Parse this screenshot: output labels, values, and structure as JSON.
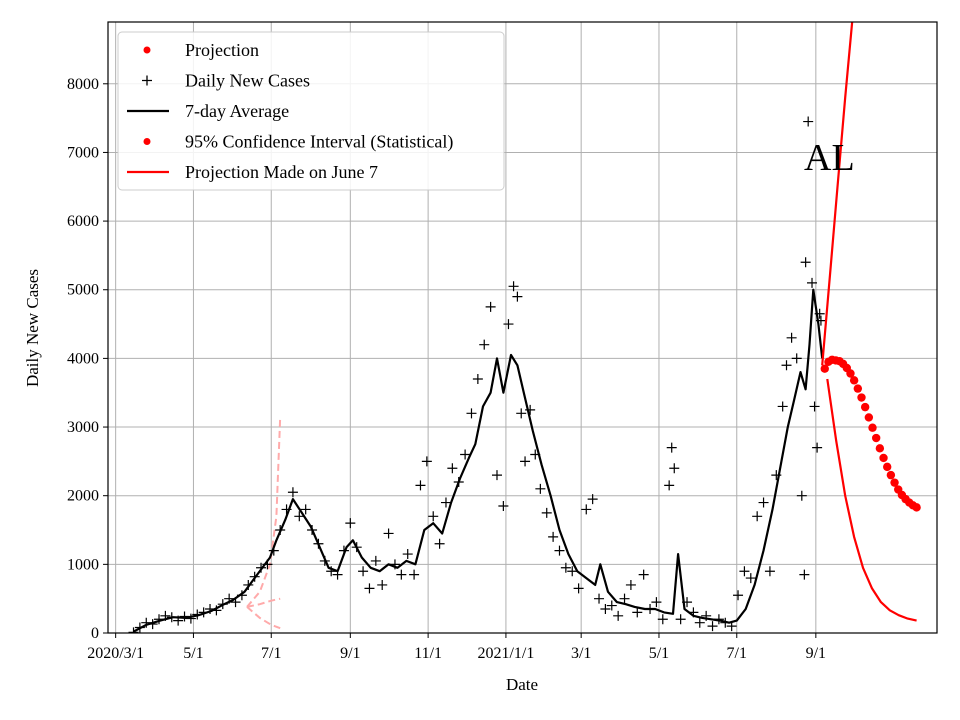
{
  "chart_data": {
    "type": "line",
    "title": "",
    "annotation": "AL",
    "xlabel": "Date",
    "ylabel": "Daily New Cases",
    "ylim": [
      0,
      8900
    ],
    "xlim": [
      "2020-02-24",
      "2021-12-05"
    ],
    "grid": true,
    "legend_position": "top-left",
    "x_ticks": [
      {
        "date": "2020-03-01",
        "label": "2020/3/1"
      },
      {
        "date": "2020-05-01",
        "label": "5/1"
      },
      {
        "date": "2020-07-01",
        "label": "7/1"
      },
      {
        "date": "2020-09-01",
        "label": "9/1"
      },
      {
        "date": "2020-11-01",
        "label": "11/1"
      },
      {
        "date": "2021-01-01",
        "label": "2021/1/1"
      },
      {
        "date": "2021-03-01",
        "label": "3/1"
      },
      {
        "date": "2021-05-01",
        "label": "5/1"
      },
      {
        "date": "2021-07-01",
        "label": "7/1"
      },
      {
        "date": "2021-09-01",
        "label": "9/1"
      }
    ],
    "y_ticks": [
      0,
      1000,
      2000,
      3000,
      4000,
      5000,
      6000,
      7000,
      8000
    ],
    "legend": [
      {
        "label": "Projection",
        "marker": "dot",
        "color": "#ff0000"
      },
      {
        "label": "Daily New Cases",
        "marker": "plus",
        "color": "#000000"
      },
      {
        "label": "7-day Average",
        "marker": "line",
        "color": "#000000"
      },
      {
        "label": "95% Confidence Interval (Statistical)",
        "marker": "dot",
        "color": "#ff0000"
      },
      {
        "label": "Projection Made on June 7",
        "marker": "line",
        "color": "#ff0000"
      }
    ],
    "series": [
      {
        "name": "7-day Average",
        "color": "#000000",
        "points": [
          [
            "2020-03-15",
            20
          ],
          [
            "2020-03-25",
            120
          ],
          [
            "2020-04-05",
            180
          ],
          [
            "2020-04-15",
            230
          ],
          [
            "2020-04-25",
            220
          ],
          [
            "2020-05-05",
            260
          ],
          [
            "2020-05-15",
            320
          ],
          [
            "2020-05-25",
            420
          ],
          [
            "2020-06-01",
            480
          ],
          [
            "2020-06-10",
            600
          ],
          [
            "2020-06-20",
            850
          ],
          [
            "2020-06-30",
            1100
          ],
          [
            "2020-07-05",
            1350
          ],
          [
            "2020-07-12",
            1650
          ],
          [
            "2020-07-18",
            1950
          ],
          [
            "2020-07-25",
            1750
          ],
          [
            "2020-08-01",
            1550
          ],
          [
            "2020-08-08",
            1250
          ],
          [
            "2020-08-15",
            950
          ],
          [
            "2020-08-22",
            900
          ],
          [
            "2020-08-29",
            1250
          ],
          [
            "2020-09-03",
            1350
          ],
          [
            "2020-09-10",
            1100
          ],
          [
            "2020-09-17",
            950
          ],
          [
            "2020-09-24",
            900
          ],
          [
            "2020-10-01",
            1000
          ],
          [
            "2020-10-08",
            950
          ],
          [
            "2020-10-15",
            1050
          ],
          [
            "2020-10-22",
            1000
          ],
          [
            "2020-10-29",
            1500
          ],
          [
            "2020-11-05",
            1600
          ],
          [
            "2020-11-12",
            1450
          ],
          [
            "2020-11-19",
            1900
          ],
          [
            "2020-11-26",
            2250
          ],
          [
            "2020-12-03",
            2550
          ],
          [
            "2020-12-08",
            2750
          ],
          [
            "2020-12-14",
            3300
          ],
          [
            "2020-12-20",
            3500
          ],
          [
            "2020-12-25",
            4000
          ],
          [
            "2020-12-30",
            3500
          ],
          [
            "2021-01-05",
            4050
          ],
          [
            "2021-01-10",
            3900
          ],
          [
            "2021-01-15",
            3500
          ],
          [
            "2021-01-22",
            2950
          ],
          [
            "2021-01-29",
            2450
          ],
          [
            "2021-02-05",
            2000
          ],
          [
            "2021-02-12",
            1500
          ],
          [
            "2021-02-19",
            1150
          ],
          [
            "2021-02-26",
            900
          ],
          [
            "2021-03-05",
            800
          ],
          [
            "2021-03-12",
            700
          ],
          [
            "2021-03-16",
            1000
          ],
          [
            "2021-03-22",
            600
          ],
          [
            "2021-03-29",
            450
          ],
          [
            "2021-04-05",
            420
          ],
          [
            "2021-04-12",
            380
          ],
          [
            "2021-04-20",
            350
          ],
          [
            "2021-04-28",
            350
          ],
          [
            "2021-05-05",
            300
          ],
          [
            "2021-05-12",
            280
          ],
          [
            "2021-05-16",
            1150
          ],
          [
            "2021-05-21",
            350
          ],
          [
            "2021-05-28",
            250
          ],
          [
            "2021-06-04",
            220
          ],
          [
            "2021-06-11",
            200
          ],
          [
            "2021-06-18",
            180
          ],
          [
            "2021-06-25",
            150
          ],
          [
            "2021-07-01",
            180
          ],
          [
            "2021-07-08",
            350
          ],
          [
            "2021-07-15",
            700
          ],
          [
            "2021-07-22",
            1200
          ],
          [
            "2021-07-29",
            1800
          ],
          [
            "2021-08-05",
            2500
          ],
          [
            "2021-08-10",
            3000
          ],
          [
            "2021-08-15",
            3400
          ],
          [
            "2021-08-20",
            3800
          ],
          [
            "2021-08-24",
            3550
          ],
          [
            "2021-08-27",
            4200
          ],
          [
            "2021-08-30",
            5000
          ],
          [
            "2021-09-03",
            4500
          ],
          [
            "2021-09-06",
            4000
          ]
        ]
      },
      {
        "name": "Projection Made on June 7",
        "color": "#ff0000",
        "points": [
          [
            "2021-09-06",
            3900
          ],
          [
            "2021-09-12",
            5200
          ],
          [
            "2021-09-18",
            6500
          ],
          [
            "2021-09-24",
            7800
          ],
          [
            "2021-09-30",
            9000
          ]
        ]
      },
      {
        "name": "Projection Made on June 7",
        "color": "#ff0000",
        "points": [
          [
            "2021-09-10",
            3700
          ],
          [
            "2021-09-17",
            2800
          ],
          [
            "2021-09-24",
            2000
          ],
          [
            "2021-10-01",
            1400
          ],
          [
            "2021-10-08",
            950
          ],
          [
            "2021-10-15",
            650
          ],
          [
            "2021-10-22",
            450
          ],
          [
            "2021-10-29",
            330
          ],
          [
            "2021-11-05",
            260
          ],
          [
            "2021-11-12",
            210
          ],
          [
            "2021-11-19",
            180
          ]
        ]
      },
      {
        "name": "Projection",
        "color": "#ff0000",
        "marker": "dot",
        "start": "2021-09-08",
        "end": "2021-11-19",
        "values": [
          3850,
          3950,
          3980,
          3970,
          3960,
          3920,
          3860,
          3780,
          3680,
          3560,
          3430,
          3290,
          3140,
          2990,
          2840,
          2690,
          2550,
          2420,
          2300,
          2190,
          2090,
          2010,
          1950,
          1900,
          1860,
          1830
        ]
      }
    ],
    "historical_projection_traces": [
      {
        "color": "#ffaaaa",
        "style": "dashed",
        "points": [
          [
            "2020-06-12",
            380
          ],
          [
            "2020-06-22",
            600
          ],
          [
            "2020-06-30",
            1000
          ],
          [
            "2020-07-05",
            1700
          ],
          [
            "2020-07-08",
            3150
          ]
        ]
      },
      {
        "color": "#ffaaaa",
        "style": "dashed",
        "points": [
          [
            "2020-06-12",
            380
          ],
          [
            "2020-06-22",
            420
          ],
          [
            "2020-07-01",
            470
          ],
          [
            "2020-07-08",
            500
          ]
        ]
      },
      {
        "color": "#ffaaaa",
        "style": "dashed",
        "points": [
          [
            "2020-06-12",
            380
          ],
          [
            "2020-06-22",
            220
          ],
          [
            "2020-07-01",
            120
          ],
          [
            "2020-07-08",
            70
          ]
        ]
      }
    ],
    "daily_cases_scatter": [
      [
        "2020-03-15",
        10
      ],
      [
        "2020-03-20",
        80
      ],
      [
        "2020-03-25",
        150
      ],
      [
        "2020-03-30",
        130
      ],
      [
        "2020-04-04",
        200
      ],
      [
        "2020-04-09",
        250
      ],
      [
        "2020-04-14",
        230
      ],
      [
        "2020-04-19",
        180
      ],
      [
        "2020-04-24",
        240
      ],
      [
        "2020-04-29",
        210
      ],
      [
        "2020-05-04",
        270
      ],
      [
        "2020-05-09",
        300
      ],
      [
        "2020-05-14",
        350
      ],
      [
        "2020-05-19",
        330
      ],
      [
        "2020-05-24",
        420
      ],
      [
        "2020-05-29",
        500
      ],
      [
        "2020-06-03",
        450
      ],
      [
        "2020-06-08",
        550
      ],
      [
        "2020-06-13",
        700
      ],
      [
        "2020-06-18",
        820
      ],
      [
        "2020-06-23",
        950
      ],
      [
        "2020-06-28",
        1000
      ],
      [
        "2020-07-03",
        1200
      ],
      [
        "2020-07-08",
        1500
      ],
      [
        "2020-07-13",
        1800
      ],
      [
        "2020-07-18",
        2050
      ],
      [
        "2020-07-23",
        1700
      ],
      [
        "2020-07-28",
        1800
      ],
      [
        "2020-08-02",
        1500
      ],
      [
        "2020-08-07",
        1300
      ],
      [
        "2020-08-12",
        1050
      ],
      [
        "2020-08-17",
        900
      ],
      [
        "2020-08-22",
        850
      ],
      [
        "2020-08-27",
        1200
      ],
      [
        "2020-09-01",
        1600
      ],
      [
        "2020-09-06",
        1250
      ],
      [
        "2020-09-11",
        900
      ],
      [
        "2020-09-16",
        650
      ],
      [
        "2020-09-21",
        1050
      ],
      [
        "2020-09-26",
        700
      ],
      [
        "2020-10-01",
        1450
      ],
      [
        "2020-10-06",
        1000
      ],
      [
        "2020-10-11",
        850
      ],
      [
        "2020-10-16",
        1150
      ],
      [
        "2020-10-21",
        850
      ],
      [
        "2020-10-26",
        2150
      ],
      [
        "2020-10-31",
        2500
      ],
      [
        "2020-11-05",
        1700
      ],
      [
        "2020-11-10",
        1300
      ],
      [
        "2020-11-15",
        1900
      ],
      [
        "2020-11-20",
        2400
      ],
      [
        "2020-11-25",
        2200
      ],
      [
        "2020-11-30",
        2600
      ],
      [
        "2020-12-05",
        3200
      ],
      [
        "2020-12-10",
        3700
      ],
      [
        "2020-12-15",
        4200
      ],
      [
        "2020-12-20",
        4750
      ],
      [
        "2020-12-25",
        2300
      ],
      [
        "2020-12-30",
        1850
      ],
      [
        "2021-01-03",
        4500
      ],
      [
        "2021-01-07",
        5050
      ],
      [
        "2021-01-10",
        4900
      ],
      [
        "2021-01-13",
        3200
      ],
      [
        "2021-01-16",
        2500
      ],
      [
        "2021-01-20",
        3250
      ],
      [
        "2021-01-24",
        2600
      ],
      [
        "2021-01-28",
        2100
      ],
      [
        "2021-02-02",
        1750
      ],
      [
        "2021-02-07",
        1400
      ],
      [
        "2021-02-12",
        1200
      ],
      [
        "2021-02-17",
        950
      ],
      [
        "2021-02-22",
        900
      ],
      [
        "2021-02-27",
        650
      ],
      [
        "2021-03-05",
        1800
      ],
      [
        "2021-03-10",
        1950
      ],
      [
        "2021-03-15",
        500
      ],
      [
        "2021-03-20",
        350
      ],
      [
        "2021-03-25",
        400
      ],
      [
        "2021-03-30",
        250
      ],
      [
        "2021-04-04",
        500
      ],
      [
        "2021-04-09",
        700
      ],
      [
        "2021-04-14",
        300
      ],
      [
        "2021-04-19",
        850
      ],
      [
        "2021-04-24",
        350
      ],
      [
        "2021-04-29",
        450
      ],
      [
        "2021-05-04",
        200
      ],
      [
        "2021-05-09",
        2150
      ],
      [
        "2021-05-11",
        2700
      ],
      [
        "2021-05-13",
        2400
      ],
      [
        "2021-05-18",
        200
      ],
      [
        "2021-05-23",
        450
      ],
      [
        "2021-05-28",
        300
      ],
      [
        "2021-06-02",
        150
      ],
      [
        "2021-06-07",
        250
      ],
      [
        "2021-06-12",
        100
      ],
      [
        "2021-06-17",
        200
      ],
      [
        "2021-06-22",
        150
      ],
      [
        "2021-06-27",
        100
      ],
      [
        "2021-07-02",
        550
      ],
      [
        "2021-07-07",
        900
      ],
      [
        "2021-07-12",
        800
      ],
      [
        "2021-07-17",
        1700
      ],
      [
        "2021-07-22",
        1900
      ],
      [
        "2021-07-27",
        900
      ],
      [
        "2021-08-01",
        2300
      ],
      [
        "2021-08-06",
        3300
      ],
      [
        "2021-08-09",
        3900
      ],
      [
        "2021-08-13",
        4300
      ],
      [
        "2021-08-17",
        4000
      ],
      [
        "2021-08-21",
        2000
      ],
      [
        "2021-08-24",
        5400
      ],
      [
        "2021-08-26",
        7450
      ],
      [
        "2021-08-29",
        5100
      ],
      [
        "2021-08-31",
        3300
      ],
      [
        "2021-09-02",
        2700
      ],
      [
        "2021-09-04",
        4650
      ],
      [
        "2021-09-05",
        4550
      ],
      [
        "2021-08-23",
        850
      ]
    ]
  }
}
